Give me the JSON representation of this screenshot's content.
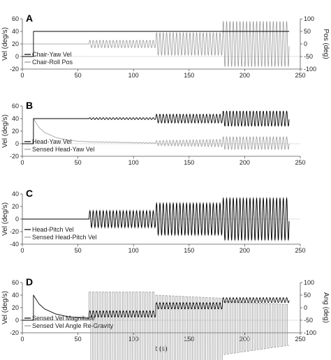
{
  "chart_data": [
    {
      "type": "line",
      "panel_label": "A",
      "xlabel": "",
      "ylabel": "Vel (deg/s)",
      "ylabel_right": "Pos (deg)",
      "xlim": [
        0,
        250
      ],
      "ylim": [
        -20,
        60
      ],
      "ylim_right": [
        -100,
        100
      ],
      "x_ticks": [
        "0",
        "50",
        "100",
        "150",
        "200",
        "250"
      ],
      "y_ticks": [
        "-20",
        "0",
        "20",
        "40",
        "60"
      ],
      "y_ticks_right": [
        "-100",
        "-50",
        "0",
        "50",
        "100"
      ],
      "legend": "bottom-left",
      "series": [
        {
          "name": "Chair-Yaw Vel",
          "color": "#000000",
          "axis": "left",
          "x": [
            0,
            10,
            10,
            240
          ],
          "values": [
            0,
            0,
            40,
            40
          ]
        },
        {
          "name": "Chair-Roll Pos",
          "color": "#999999",
          "axis": "right",
          "kind": "sinusoid",
          "x": [
            0,
            60,
            60,
            120,
            120,
            180,
            180,
            240
          ],
          "offset": [
            0,
            0,
            0,
            0,
            0,
            0,
            0,
            0
          ],
          "amplitude": [
            0,
            0,
            15,
            15,
            45,
            45,
            90,
            90
          ],
          "period": 3
        }
      ]
    },
    {
      "type": "line",
      "panel_label": "B",
      "xlabel": "",
      "ylabel": "Vel (deg/s)",
      "xlim": [
        0,
        250
      ],
      "ylim": [
        -20,
        60
      ],
      "x_ticks": [
        "0",
        "50",
        "100",
        "150",
        "200",
        "250"
      ],
      "y_ticks": [
        "-20",
        "0",
        "20",
        "40",
        "60"
      ],
      "legend": "bottom-left",
      "series": [
        {
          "name": "Head-Yaw Vel",
          "color": "#000000",
          "kind": "sinusoid",
          "x": [
            0,
            10,
            10,
            60,
            60,
            120,
            120,
            180,
            180,
            240
          ],
          "offset": [
            0,
            0,
            40,
            40,
            40,
            40,
            40,
            40,
            40,
            40
          ],
          "amplitude": [
            0,
            0,
            0,
            0,
            1.5,
            1.5,
            7,
            7,
            12,
            12
          ],
          "period": 3
        },
        {
          "name": "Sensed Head-Yaw Vel",
          "color": "#999999",
          "kind": "sinusoid",
          "x": [
            0,
            10,
            10,
            15,
            20,
            30,
            40,
            50,
            60,
            120,
            120,
            180,
            180,
            240
          ],
          "offset": [
            0,
            0,
            40,
            26,
            18,
            10,
            6,
            4,
            3,
            1,
            1,
            1,
            1,
            1
          ],
          "amplitude": [
            0,
            0,
            0,
            0,
            0,
            0,
            0,
            0,
            0.5,
            0.5,
            4,
            6,
            10,
            10
          ],
          "period": 3
        }
      ]
    },
    {
      "type": "line",
      "panel_label": "C",
      "xlabel": "",
      "ylabel": "Vel (deg/s)",
      "xlim": [
        0,
        250
      ],
      "ylim": [
        -40,
        40
      ],
      "x_ticks": [
        "0",
        "50",
        "100",
        "150",
        "200",
        "250"
      ],
      "y_ticks": [
        "-40",
        "-20",
        "0",
        "20",
        "40"
      ],
      "legend": "bottom-left",
      "series": [
        {
          "name": "Head-Pitch Vel",
          "color": "#000000",
          "kind": "sinusoid",
          "x": [
            0,
            60,
            60,
            120,
            120,
            180,
            180,
            240
          ],
          "offset": [
            0,
            0,
            0,
            0,
            0,
            0,
            0,
            0
          ],
          "amplitude": [
            0,
            0,
            13,
            13,
            25,
            25,
            33,
            33
          ],
          "period": 3
        },
        {
          "name": "Sensed Head-Pitch Vel",
          "color": "#999999",
          "kind": "sinusoid",
          "x": [
            0,
            60,
            60,
            120,
            120,
            180,
            180,
            240
          ],
          "offset": [
            0,
            0,
            0,
            0,
            0,
            0,
            0,
            0
          ],
          "amplitude": [
            0,
            0,
            15,
            15,
            27,
            27,
            35,
            35
          ],
          "period": 3
        }
      ]
    },
    {
      "type": "line",
      "panel_label": "D",
      "xlabel": "t (s)",
      "ylabel": "Vel (deg/s)",
      "ylabel_right": "Ang (deg)",
      "xlim": [
        0,
        250
      ],
      "ylim": [
        -20,
        60
      ],
      "ylim_right": [
        -100,
        100
      ],
      "x_ticks": [
        "0",
        "50",
        "100",
        "150",
        "200",
        "250"
      ],
      "y_ticks": [
        "-20",
        "0",
        "20",
        "40",
        "60"
      ],
      "y_ticks_right": [
        "-100",
        "-50",
        "0",
        "50",
        "100"
      ],
      "legend": "bottom-left",
      "series": [
        {
          "name": "Sensed Vel Magnitude",
          "color": "#000000",
          "kind": "sinusoid",
          "x": [
            0,
            10,
            10,
            15,
            20,
            30,
            40,
            50,
            60,
            60,
            120,
            120,
            180,
            180,
            240
          ],
          "offset": [
            0,
            0,
            40,
            26,
            18,
            10,
            6,
            4,
            3,
            10,
            10,
            23,
            23,
            32,
            32
          ],
          "amplitude": [
            0,
            0,
            0,
            0,
            0,
            0,
            0,
            0,
            0,
            5,
            5,
            5,
            5,
            4,
            4
          ],
          "period": 3
        },
        {
          "name": "Sensed Vel Angle Re-Gravity",
          "color": "#999999",
          "kind": "square",
          "x": [
            0,
            60,
            60,
            120,
            120,
            180,
            180,
            240
          ],
          "high": [
            0,
            0,
            45,
            45,
            40,
            35,
            30,
            25
          ],
          "low": [
            0,
            0,
            -85,
            -85,
            -85,
            -65,
            -55,
            -40
          ],
          "period": 3
        }
      ]
    }
  ]
}
